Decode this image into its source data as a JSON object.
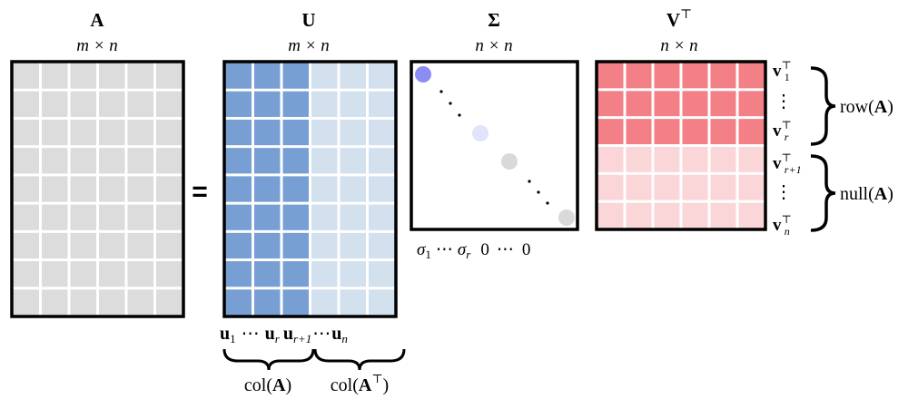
{
  "matrices": {
    "A": {
      "symbol": "A",
      "dims": "m × n",
      "rows": 9,
      "cols": 6,
      "cell_color": "#dcdcdc"
    },
    "U": {
      "symbol": "U",
      "dims": "m × n",
      "rows": 9,
      "cols": 6,
      "split_col": 3,
      "left_color": "#779fd3",
      "right_color": "#d3e0ee"
    },
    "Sigma": {
      "symbol": "Σ",
      "dims": "n × n",
      "dot_colors": [
        "#8c8cf5",
        "#e3e3fb",
        "#d9d9d9",
        "#d9d9d9"
      ],
      "diag_labels": [
        "σ",
        "1",
        "⋯",
        "σ",
        "r",
        "0",
        "⋯",
        "0"
      ]
    },
    "Vt": {
      "symbol": "V",
      "superscript": "⊤",
      "dims": "n × n",
      "rows": 6,
      "cols": 6,
      "split_row": 3,
      "top_color": "#f28086",
      "bottom_color": "#fbd6d9"
    }
  },
  "equals": "=",
  "u_labels": {
    "u1": "u",
    "u1_sub": "1",
    "dots1": "⋯",
    "ur": "u",
    "ur_sub": "r",
    "ur1": "u",
    "ur1_sub": "r+1",
    "dots2": "⋯",
    "un": "u",
    "un_sub": "n"
  },
  "col_labels": {
    "left": "col(",
    "left_bold": "A",
    "left_close": ")",
    "right": "col(",
    "right_bold": "A",
    "right_sup": "⊤",
    "right_close": ")"
  },
  "v_labels": {
    "v1": "v",
    "v1_sup": "⊤",
    "v1_sub": "1",
    "vdots1": "⋮",
    "vr": "v",
    "vr_sup": "⊤",
    "vr_sub": "r",
    "vr1": "v",
    "vr1_sup": "⊤",
    "vr1_sub": "r+1",
    "vdots2": "⋮",
    "vn": "v",
    "vn_sup": "⊤",
    "vn_sub": "n"
  },
  "space_labels": {
    "row": "row(",
    "row_bold": "A",
    "row_close": ")",
    "null": "null(",
    "null_bold": "A",
    "null_close": ")"
  }
}
